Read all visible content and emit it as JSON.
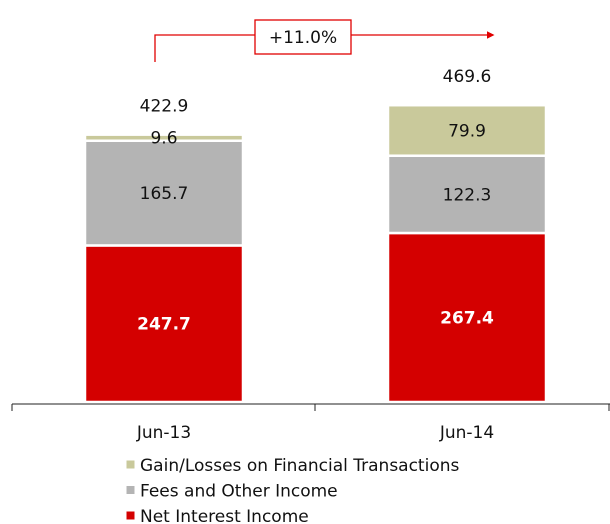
{
  "chart_data": {
    "type": "stacked_bar",
    "categories": [
      "Jun-13",
      "Jun-14"
    ],
    "series": [
      {
        "name": "Net Interest Income",
        "color": "#d40000",
        "values": [
          247.7,
          267.4
        ]
      },
      {
        "name": "Fees and Other Income",
        "color": "#b4b4b4",
        "values": [
          165.7,
          122.3
        ]
      },
      {
        "name": "Gain/Losses on Financial Transactions",
        "color": "#c9c99b",
        "values": [
          9.6,
          79.9
        ]
      }
    ],
    "totals": [
      422.9,
      469.6
    ],
    "annotation": "+11.0%",
    "legend": "bottom"
  }
}
